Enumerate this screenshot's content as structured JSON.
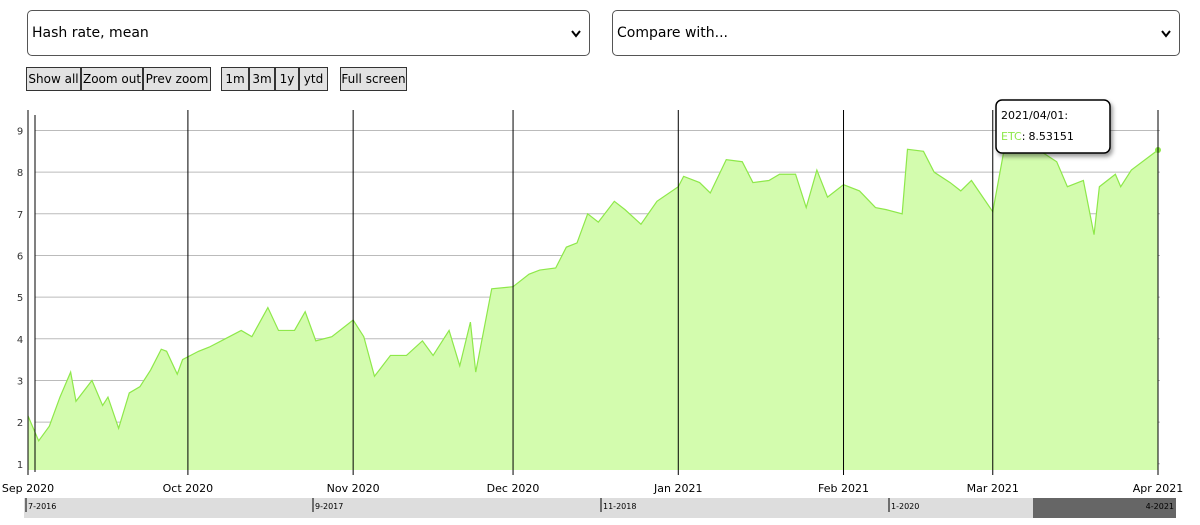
{
  "ui": {
    "metric_select": "Hash rate, mean",
    "compare_select": "Compare with...",
    "zoom_buttons": [
      "Show all",
      "Zoom out",
      "Prev zoom"
    ],
    "range_buttons": [
      "1m",
      "3m",
      "1y",
      "ytd"
    ],
    "fullscreen_button": "Full screen",
    "navigator_labels": [
      "7-2016",
      "9-2017",
      "11-2018",
      "1-2020",
      "4-2021"
    ]
  },
  "chart_data": {
    "type": "area",
    "x": [
      "2020/09/01",
      "2020/09/03",
      "2020/09/05",
      "2020/09/07",
      "2020/09/09",
      "2020/09/10",
      "2020/09/13",
      "2020/09/15",
      "2020/09/16",
      "2020/09/18",
      "2020/09/20",
      "2020/09/22",
      "2020/09/24",
      "2020/09/26",
      "2020/09/27",
      "2020/09/29",
      "2020/09/30",
      "2020/10/03",
      "2020/10/05",
      "2020/10/08",
      "2020/10/11",
      "2020/10/13",
      "2020/10/16",
      "2020/10/18",
      "2020/10/21",
      "2020/10/23",
      "2020/10/25",
      "2020/10/28",
      "2020/11/01",
      "2020/11/03",
      "2020/11/05",
      "2020/11/08",
      "2020/11/11",
      "2020/11/14",
      "2020/11/16",
      "2020/11/19",
      "2020/11/21",
      "2020/11/23",
      "2020/11/24",
      "2020/11/27",
      "2020/12/01",
      "2020/12/04",
      "2020/12/06",
      "2020/12/09",
      "2020/12/11",
      "2020/12/13",
      "2020/12/15",
      "2020/12/17",
      "2020/12/20",
      "2020/12/22",
      "2020/12/25",
      "2020/12/28",
      "2021/01/01",
      "2021/01/02",
      "2021/01/05",
      "2021/01/07",
      "2021/01/10",
      "2021/01/13",
      "2021/01/15",
      "2021/01/18",
      "2021/01/20",
      "2021/01/23",
      "2021/01/25",
      "2021/01/27",
      "2021/01/29",
      "2021/02/01",
      "2021/02/04",
      "2021/02/07",
      "2021/02/09",
      "2021/02/12",
      "2021/02/13",
      "2021/02/16",
      "2021/02/18",
      "2021/02/21",
      "2021/02/23",
      "2021/02/25",
      "2021/03/01",
      "2021/03/03",
      "2021/03/07",
      "2021/03/10",
      "2021/03/13",
      "2021/03/15",
      "2021/03/18",
      "2021/03/20",
      "2021/03/21",
      "2021/03/24",
      "2021/03/25",
      "2021/03/27",
      "2021/04/01"
    ],
    "series": [
      {
        "name": "ETC",
        "color": "#8ee84a",
        "fill": "#d3fcae",
        "values": [
          2.15,
          1.55,
          1.9,
          2.6,
          3.2,
          2.5,
          3.0,
          2.4,
          2.6,
          1.85,
          2.7,
          2.85,
          3.25,
          3.75,
          3.7,
          3.15,
          3.5,
          3.7,
          3.8,
          4.0,
          4.2,
          4.05,
          4.75,
          4.2,
          4.2,
          4.65,
          3.95,
          4.05,
          4.45,
          4.05,
          3.1,
          3.6,
          3.6,
          3.95,
          3.6,
          4.2,
          3.35,
          4.4,
          3.2,
          5.2,
          5.25,
          5.55,
          5.65,
          5.7,
          6.2,
          6.3,
          7.0,
          6.8,
          7.3,
          7.1,
          6.75,
          7.3,
          7.65,
          7.9,
          7.75,
          7.5,
          8.3,
          8.25,
          7.75,
          7.8,
          7.95,
          7.95,
          7.15,
          8.05,
          7.4,
          7.7,
          7.55,
          7.15,
          7.1,
          7.0,
          8.55,
          8.5,
          8.0,
          7.75,
          7.55,
          7.8,
          7.05,
          8.45,
          8.6,
          8.5,
          8.25,
          7.65,
          7.8,
          6.5,
          7.65,
          7.95,
          7.65,
          8.05,
          8.53151
        ]
      }
    ],
    "xlim": [
      "2020/09/01",
      "2021/04/01"
    ],
    "xticks": [
      {
        "value": "2020/09/01",
        "label": "Sep 2020"
      },
      {
        "value": "2020/10/01",
        "label": "Oct 2020"
      },
      {
        "value": "2020/11/01",
        "label": "Nov 2020"
      },
      {
        "value": "2020/12/01",
        "label": "Dec 2020"
      },
      {
        "value": "2021/01/01",
        "label": "Jan 2021"
      },
      {
        "value": "2021/02/01",
        "label": "Feb 2021"
      },
      {
        "value": "2021/03/01",
        "label": "Mar 2021"
      },
      {
        "value": "2021/04/01",
        "label": "Apr 2021"
      }
    ],
    "ylim": [
      0.85,
      9.3
    ],
    "yticks": [
      1,
      2,
      3,
      4,
      5,
      6,
      7,
      8,
      9
    ],
    "grid": true,
    "tooltip": {
      "title": "2021/04/01:",
      "separator": ":"
    }
  }
}
